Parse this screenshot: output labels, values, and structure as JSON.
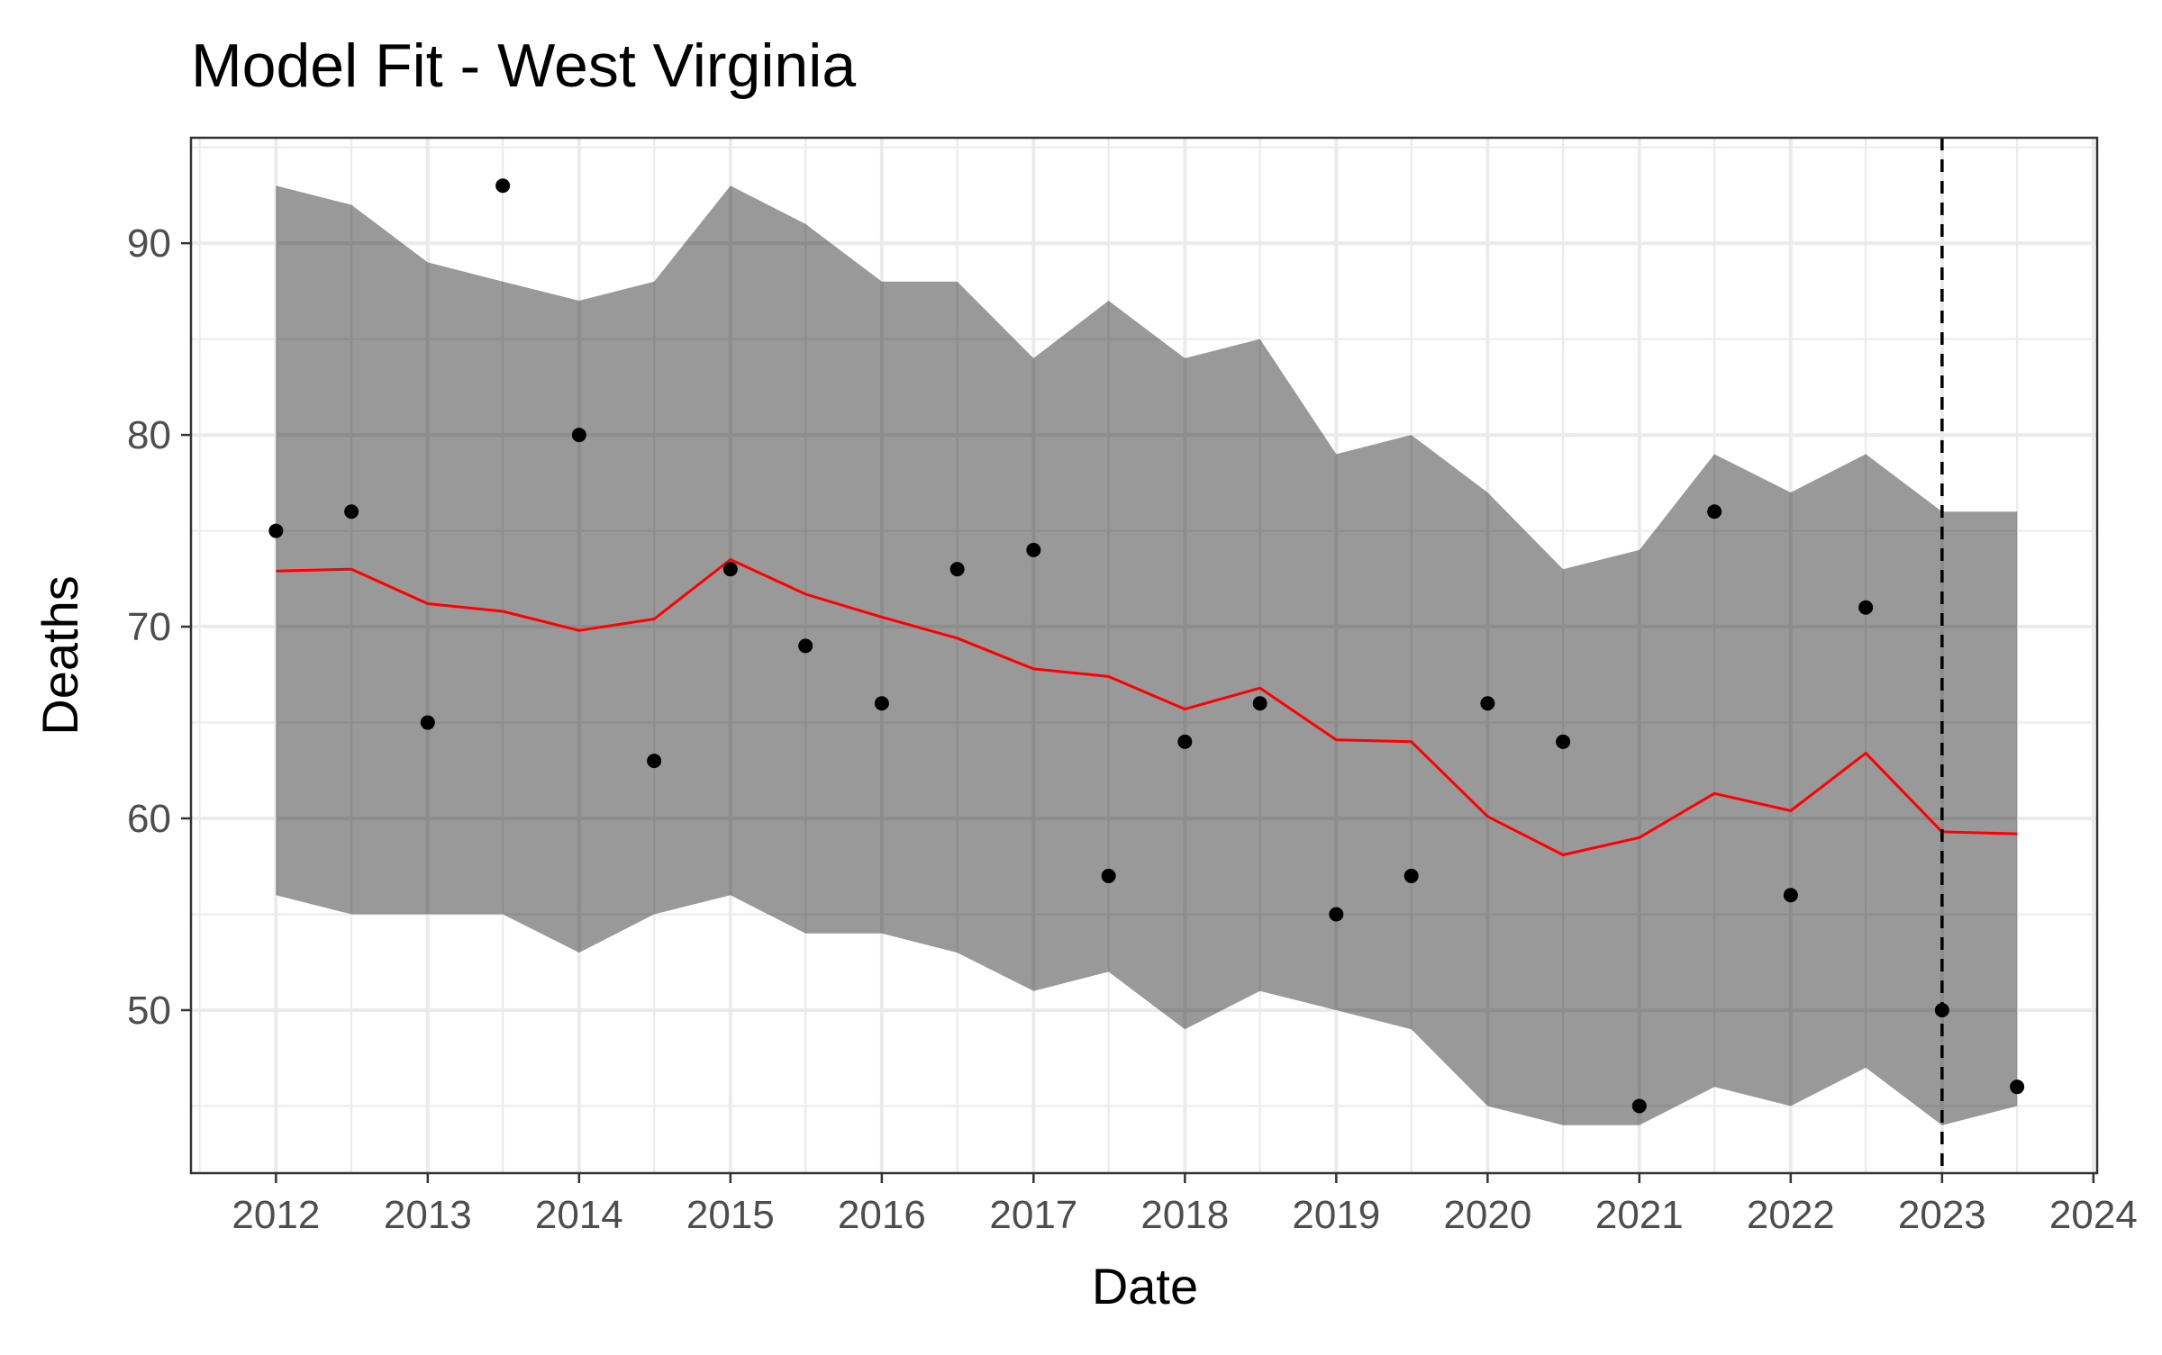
{
  "chart_data": {
    "type": "line",
    "title": "Model Fit - West Virginia",
    "xlabel": "Date",
    "ylabel": "Deaths",
    "x_ticks": [
      "2012",
      "2013",
      "2014",
      "2015",
      "2016",
      "2017",
      "2018",
      "2019",
      "2020",
      "2021",
      "2022",
      "2023",
      "2024"
    ],
    "y_ticks": [
      "50",
      "60",
      "70",
      "80",
      "90"
    ],
    "xlim": [
      "2011-06-10",
      "2024-01-10"
    ],
    "ylim": [
      41.5,
      95.5
    ],
    "grid": true,
    "legend": "none",
    "vline_date": "2023-01-01",
    "colors": {
      "fit_line": "#ff0000",
      "ribbon": "#999999",
      "points": "#000000",
      "grid": "#ebebeb",
      "panel_border": "#333333",
      "vline": "#000000"
    },
    "x": [
      "2012-01-01",
      "2012-07-01",
      "2013-01-01",
      "2013-07-01",
      "2014-01-01",
      "2014-07-01",
      "2015-01-01",
      "2015-07-01",
      "2016-01-01",
      "2016-07-01",
      "2017-01-01",
      "2017-07-01",
      "2018-01-01",
      "2018-07-01",
      "2019-01-01",
      "2019-07-01",
      "2020-01-01",
      "2020-07-01",
      "2021-01-01",
      "2021-07-01",
      "2022-01-01",
      "2022-07-01",
      "2023-01-01",
      "2023-07-01"
    ],
    "series": [
      {
        "kind": "points",
        "values": [
          75,
          76,
          65,
          93,
          80,
          63,
          73,
          69,
          66,
          73,
          74,
          57,
          64,
          66,
          55,
          57,
          66,
          64,
          45,
          76,
          56,
          71,
          50,
          46
        ]
      },
      {
        "kind": "fit",
        "values": [
          72.9,
          73.0,
          71.2,
          70.8,
          69.8,
          70.4,
          73.5,
          71.7,
          70.5,
          69.4,
          67.8,
          67.4,
          65.7,
          66.8,
          64.1,
          64.0,
          60.1,
          58.1,
          59.0,
          61.3,
          60.4,
          63.4,
          59.3,
          59.2
        ]
      },
      {
        "kind": "band_upper",
        "values": [
          93,
          92,
          89,
          88,
          87,
          88,
          93,
          91,
          88,
          88,
          84,
          87,
          84,
          85,
          79,
          80,
          77,
          73,
          74,
          79,
          77,
          79,
          76,
          76
        ]
      },
      {
        "kind": "band_lower",
        "values": [
          56,
          55,
          55,
          55,
          53,
          55,
          56,
          54,
          54,
          53,
          51,
          52,
          49,
          51,
          50,
          49,
          45,
          44,
          44,
          46,
          45,
          47,
          44,
          45
        ]
      }
    ]
  }
}
